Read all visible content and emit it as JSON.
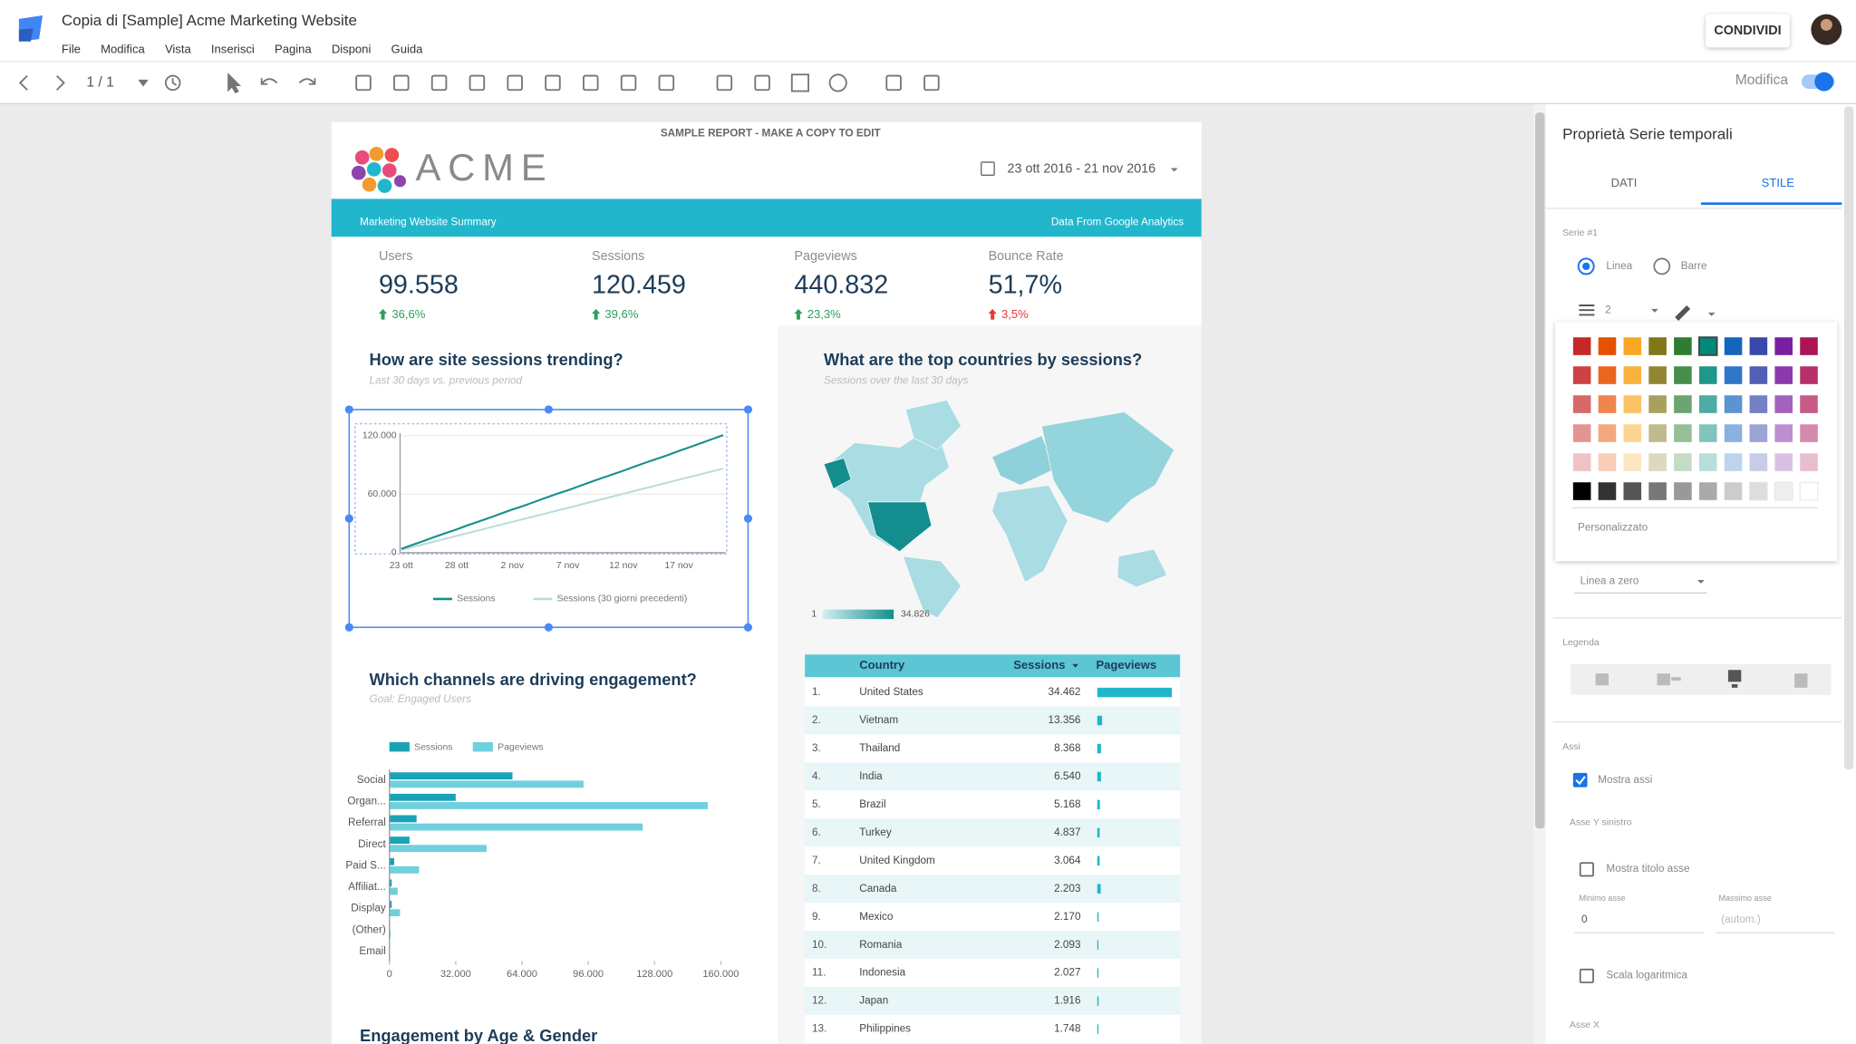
{
  "app": {
    "title": "Copia di [Sample] Acme Marketing Website",
    "menu": [
      "File",
      "Modifica",
      "Vista",
      "Inserisci",
      "Pagina",
      "Disponi",
      "Guida"
    ],
    "page": "1 / 1",
    "share": "CONDIVIDI",
    "mode": "Modifica"
  },
  "report": {
    "banner": "SAMPLE REPORT - MAKE A COPY TO EDIT",
    "logo": "ACME",
    "date_range": "23 ott 2016 - 21 nov 2016",
    "header_left": "Marketing Website Summary",
    "header_right": "Data From Google Analytics",
    "kpis": [
      {
        "label": "Users",
        "value": "99.558",
        "change": "36,6%",
        "change_color": "#2e9e5b"
      },
      {
        "label": "Sessions",
        "value": "120.459",
        "change": "39,6%",
        "change_color": "#2e9e5b"
      },
      {
        "label": "Pageviews",
        "value": "440.832",
        "change": "23,3%",
        "change_color": "#2e9e5b"
      },
      {
        "label": "Bounce Rate",
        "value": "51,7%",
        "change": "3,5%",
        "change_color": "#e53935"
      }
    ],
    "footer_title": "Engagement by Age & Gender"
  },
  "chart_data": [
    {
      "type": "line",
      "title": "How are site sessions trending?",
      "subtitle": "Last 30 days vs. previous period",
      "categories": [
        "23 ott",
        null,
        null,
        null,
        null,
        "28 ott",
        null,
        null,
        null,
        null,
        "2 nov",
        null,
        null,
        null,
        null,
        "7 nov",
        null,
        null,
        null,
        null,
        "12 nov",
        null,
        null,
        null,
        null,
        "17 nov",
        null,
        null,
        null,
        null
      ],
      "series": [
        {
          "name": "Sessions",
          "color": "#178e8c",
          "values": [
            4000,
            8100,
            12000,
            16200,
            20100,
            24000,
            28200,
            32100,
            36000,
            40300,
            44200,
            48000,
            52100,
            56300,
            60200,
            64000,
            68100,
            72300,
            76200,
            80100,
            84000,
            88200,
            92300,
            96100,
            100000,
            104200,
            108200,
            112300,
            116400,
            120459
          ]
        },
        {
          "name": "Sessions (30 giorni precedenti)",
          "color": "#bcdcdb",
          "values": [
            2900,
            5800,
            8700,
            11500,
            14400,
            17300,
            20100,
            23000,
            25900,
            28800,
            31600,
            34500,
            37400,
            40300,
            43100,
            46000,
            48900,
            51800,
            54700,
            57500,
            60400,
            63300,
            66200,
            69000,
            71900,
            74800,
            77700,
            80500,
            83400,
            86288
          ]
        }
      ],
      "ylim": [
        0,
        120000
      ],
      "yticks": [
        0,
        {
          "value": 60000,
          "label": "60.000"
        },
        {
          "value": 120000,
          "label": "120.000"
        }
      ],
      "grid": true
    },
    {
      "type": "bar",
      "orientation": "horizontal",
      "title": "Which channels are driving engagement?",
      "subtitle": "Goal: Engaged Users",
      "categories": [
        "Social",
        "Organ...",
        "Referral",
        "Direct",
        "Paid S...",
        "Affiliat...",
        "Display",
        "(Other)",
        "Email"
      ],
      "series": [
        {
          "name": "Sessions",
          "color": "#1aa3b5",
          "values": [
            59400,
            32000,
            13100,
            9700,
            2300,
            1100,
            1100,
            300,
            100
          ]
        },
        {
          "name": "Pageviews",
          "color": "#70d0dd",
          "values": [
            93700,
            153700,
            122300,
            46900,
            14300,
            4000,
            5100,
            600,
            200
          ]
        }
      ],
      "xlim": [
        0,
        160000
      ],
      "xticks": [
        0,
        {
          "value": 32000,
          "label": "32.000"
        },
        {
          "value": 64000,
          "label": "64.000"
        },
        {
          "value": 96000,
          "label": "96.000"
        },
        {
          "value": 128000,
          "label": "128.000"
        },
        {
          "value": 160000,
          "label": "160.000"
        }
      ]
    }
  ],
  "geo": {
    "title": "What are the top countries by sessions?",
    "subtitle": "Sessions over the last 30 days",
    "legend_min": "1",
    "legend_max": "34.826"
  },
  "table": {
    "columns": [
      "Country",
      "Sessions",
      "Pageviews"
    ],
    "rows": [
      [
        "1.",
        "United States",
        "34.462"
      ],
      [
        "2.",
        "Vietnam",
        "13.356"
      ],
      [
        "3.",
        "Thailand",
        "8.368"
      ],
      [
        "4.",
        "India",
        "6.540"
      ],
      [
        "5.",
        "Brazil",
        "5.168"
      ],
      [
        "6.",
        "Turkey",
        "4.837"
      ],
      [
        "7.",
        "United Kingdom",
        "3.064"
      ],
      [
        "8.",
        "Canada",
        "2.203"
      ],
      [
        "9.",
        "Mexico",
        "2.170"
      ],
      [
        "10.",
        "Romania",
        "2.093"
      ],
      [
        "11.",
        "Indonesia",
        "2.027"
      ],
      [
        "12.",
        "Japan",
        "1.916"
      ],
      [
        "13.",
        "Philippines",
        "1.748"
      ]
    ],
    "pageviews": [
      140000,
      9000,
      7000,
      7000,
      5000,
      4500,
      4500,
      6500,
      2500,
      2200,
      2300,
      2500,
      2300
    ]
  },
  "panel": {
    "title": "Proprietà Serie temporali",
    "tabs": [
      "DATI",
      "STILE"
    ],
    "series_label": "Serie #1",
    "radio": [
      "Linea",
      "Barre"
    ],
    "line_weight": "2",
    "custom": "Personalizzato",
    "zero_line": "Linea a zero",
    "legend": "Legenda",
    "axes": "Assi",
    "show_axes": "Mostra assi",
    "left_y": "Asse Y sinistro",
    "show_axis_title": "Mostra titolo asse",
    "min_label": "Minimo asse",
    "min_value": "0",
    "max_label": "Massimo asse",
    "max_value": "(autom.)",
    "log_scale": "Scala logaritmica",
    "x_axis": "Asse X"
  }
}
